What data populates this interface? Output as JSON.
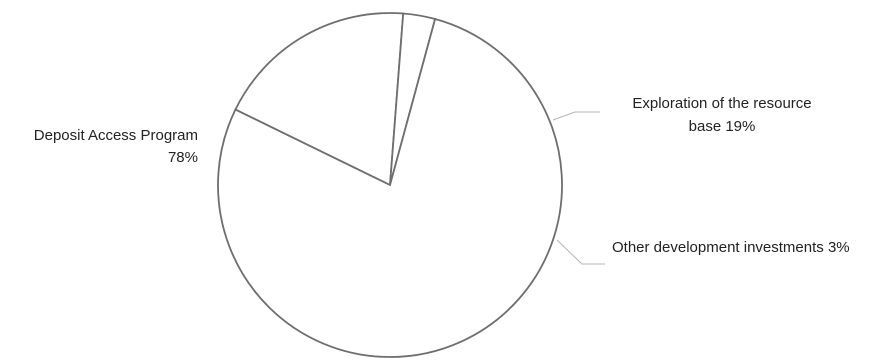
{
  "chart_data": {
    "type": "pie",
    "title": "",
    "categories": [
      "Exploration of the resource base",
      "Other development investments",
      "Deposit Access Program"
    ],
    "values": [
      19,
      3,
      78
    ],
    "labels": [
      {
        "line1": "Exploration of the resource",
        "line2": "base 19%"
      },
      {
        "line1": "Other development investments 3%"
      },
      {
        "line1": "Deposit Access Program",
        "line2": "78%"
      }
    ],
    "legend": "none",
    "colors": {
      "fill": "#ffffff",
      "stroke": "#6e6e6e",
      "leader": "#b4b4b4",
      "text": "#222222"
    }
  }
}
